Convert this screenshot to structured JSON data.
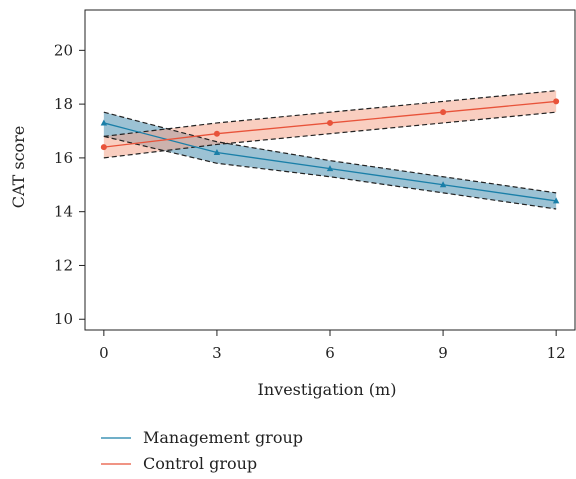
{
  "chart_data": {
    "type": "line",
    "xlabel": "Investigation (m)",
    "ylabel": "CAT score",
    "x": [
      0,
      3,
      6,
      9,
      12
    ],
    "xticks": [
      0,
      3,
      6,
      9,
      12
    ],
    "yticks": [
      10,
      12,
      14,
      16,
      18,
      20
    ],
    "xlim": [
      -0.5,
      12.5
    ],
    "ylim": [
      9.6,
      21.5
    ],
    "grid": false,
    "legend_position": "bottom-left, below plot",
    "series": [
      {
        "name": "Management group",
        "color": "#1a7fa8",
        "band_color": "#4a8fb0",
        "marker": "triangle",
        "values": [
          17.3,
          16.2,
          15.6,
          15.0,
          14.4
        ],
        "ci_upper": [
          17.7,
          16.6,
          15.9,
          15.3,
          14.7
        ],
        "ci_lower": [
          16.8,
          15.8,
          15.3,
          14.7,
          14.1
        ]
      },
      {
        "name": "Control group",
        "color": "#e8533a",
        "band_color": "#f4a68c",
        "marker": "circle",
        "values": [
          16.4,
          16.9,
          17.3,
          17.7,
          18.1
        ],
        "ci_upper": [
          16.8,
          17.3,
          17.7,
          18.1,
          18.5
        ],
        "ci_lower": [
          16.0,
          16.5,
          16.9,
          17.3,
          17.7
        ]
      }
    ]
  }
}
